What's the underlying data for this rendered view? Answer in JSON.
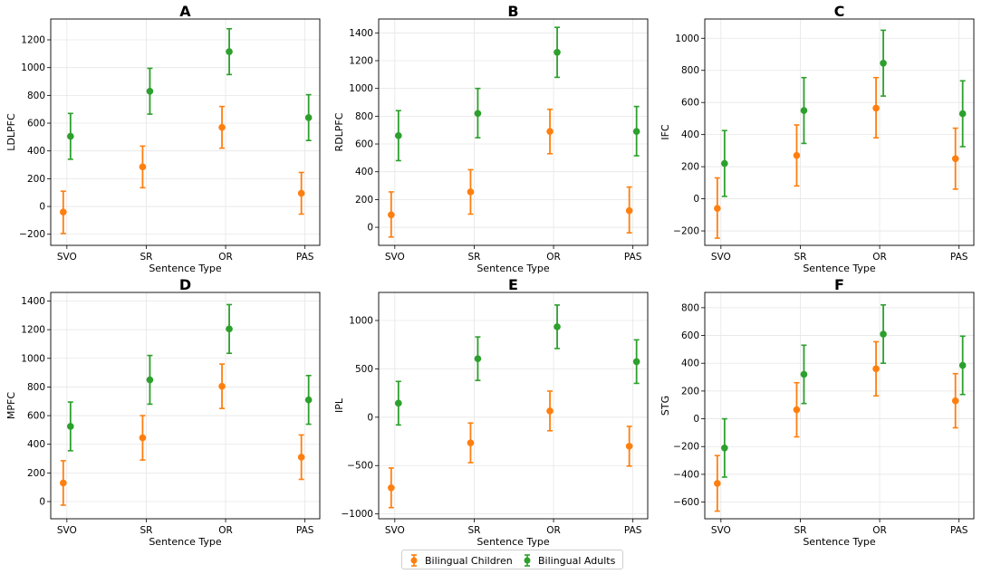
{
  "figure": {
    "legend": [
      {
        "label": "Bilingual Children",
        "color": "#ff7f0e"
      },
      {
        "label": "Bilingual Adults",
        "color": "#2ca02c"
      }
    ]
  },
  "chart_data": [
    {
      "type": "errorbar",
      "title": "A",
      "xlabel": "Sentence Type",
      "ylabel": "LDLPFC",
      "categories": [
        "SVO",
        "SR",
        "OR",
        "PAS"
      ],
      "yticks": [
        -200,
        0,
        200,
        400,
        600,
        800,
        1000,
        1200
      ],
      "ylim": [
        -280,
        1350
      ],
      "grid": true,
      "series": [
        {
          "name": "Bilingual Children",
          "color": "#ff7f0e",
          "values": [
            -40,
            285,
            570,
            95
          ],
          "lower": [
            -195,
            135,
            420,
            -55
          ],
          "upper": [
            110,
            435,
            720,
            245
          ]
        },
        {
          "name": "Bilingual Adults",
          "color": "#2ca02c",
          "values": [
            505,
            830,
            1115,
            640
          ],
          "lower": [
            340,
            665,
            950,
            475
          ],
          "upper": [
            670,
            995,
            1280,
            805
          ]
        }
      ]
    },
    {
      "type": "errorbar",
      "title": "B",
      "xlabel": "Sentence Type",
      "ylabel": "RDLPFC",
      "categories": [
        "SVO",
        "SR",
        "OR",
        "PAS"
      ],
      "yticks": [
        0,
        200,
        400,
        600,
        800,
        1000,
        1200,
        1400
      ],
      "ylim": [
        -130,
        1500
      ],
      "grid": true,
      "series": [
        {
          "name": "Bilingual Children",
          "color": "#ff7f0e",
          "values": [
            90,
            255,
            690,
            120
          ],
          "lower": [
            -70,
            95,
            530,
            -40
          ],
          "upper": [
            255,
            415,
            850,
            290
          ]
        },
        {
          "name": "Bilingual Adults",
          "color": "#2ca02c",
          "values": [
            660,
            820,
            1260,
            690
          ],
          "lower": [
            480,
            645,
            1080,
            515
          ],
          "upper": [
            840,
            1000,
            1440,
            870
          ]
        }
      ]
    },
    {
      "type": "errorbar",
      "title": "C",
      "xlabel": "Sentence Type",
      "ylabel": "IFC",
      "categories": [
        "SVO",
        "SR",
        "OR",
        "PAS"
      ],
      "yticks": [
        -200,
        0,
        200,
        400,
        600,
        800,
        1000
      ],
      "ylim": [
        -290,
        1120
      ],
      "grid": true,
      "series": [
        {
          "name": "Bilingual Children",
          "color": "#ff7f0e",
          "values": [
            -60,
            270,
            565,
            250
          ],
          "lower": [
            -245,
            80,
            380,
            60
          ],
          "upper": [
            130,
            460,
            755,
            440
          ]
        },
        {
          "name": "Bilingual Adults",
          "color": "#2ca02c",
          "values": [
            220,
            550,
            845,
            530
          ],
          "lower": [
            15,
            345,
            640,
            325
          ],
          "upper": [
            425,
            755,
            1050,
            735
          ]
        }
      ]
    },
    {
      "type": "errorbar",
      "title": "D",
      "xlabel": "Sentence Type",
      "ylabel": "MPFC",
      "categories": [
        "SVO",
        "SR",
        "OR",
        "PAS"
      ],
      "yticks": [
        0,
        200,
        400,
        600,
        800,
        1000,
        1200,
        1400
      ],
      "ylim": [
        -120,
        1460
      ],
      "grid": true,
      "series": [
        {
          "name": "Bilingual Children",
          "color": "#ff7f0e",
          "values": [
            130,
            445,
            805,
            310
          ],
          "lower": [
            -25,
            290,
            650,
            155
          ],
          "upper": [
            285,
            600,
            960,
            465
          ]
        },
        {
          "name": "Bilingual Adults",
          "color": "#2ca02c",
          "values": [
            525,
            850,
            1205,
            710
          ],
          "lower": [
            355,
            680,
            1035,
            540
          ],
          "upper": [
            695,
            1020,
            1375,
            880
          ]
        }
      ]
    },
    {
      "type": "errorbar",
      "title": "E",
      "xlabel": "Sentence Type",
      "ylabel": "IPL",
      "categories": [
        "SVO",
        "SR",
        "OR",
        "PAS"
      ],
      "yticks": [
        -1000,
        -500,
        0,
        500,
        1000
      ],
      "ylim": [
        -1050,
        1290
      ],
      "grid": true,
      "series": [
        {
          "name": "Bilingual Children",
          "color": "#ff7f0e",
          "values": [
            -730,
            -265,
            65,
            -300
          ],
          "lower": [
            -935,
            -470,
            -140,
            -505
          ],
          "upper": [
            -525,
            -60,
            270,
            -95
          ]
        },
        {
          "name": "Bilingual Adults",
          "color": "#2ca02c",
          "values": [
            145,
            605,
            935,
            575
          ],
          "lower": [
            -80,
            380,
            710,
            350
          ],
          "upper": [
            370,
            830,
            1160,
            800
          ]
        }
      ]
    },
    {
      "type": "errorbar",
      "title": "F",
      "xlabel": "Sentence Type",
      "ylabel": "STG",
      "categories": [
        "SVO",
        "SR",
        "OR",
        "PAS"
      ],
      "yticks": [
        -600,
        -400,
        -200,
        0,
        200,
        400,
        600,
        800
      ],
      "ylim": [
        -720,
        910
      ],
      "grid": true,
      "series": [
        {
          "name": "Bilingual Children",
          "color": "#ff7f0e",
          "values": [
            -465,
            65,
            360,
            130
          ],
          "lower": [
            -665,
            -130,
            165,
            -65
          ],
          "upper": [
            -265,
            260,
            555,
            325
          ]
        },
        {
          "name": "Bilingual Adults",
          "color": "#2ca02c",
          "values": [
            -210,
            320,
            610,
            385
          ],
          "lower": [
            -420,
            110,
            400,
            175
          ],
          "upper": [
            0,
            530,
            820,
            595
          ]
        }
      ]
    }
  ]
}
